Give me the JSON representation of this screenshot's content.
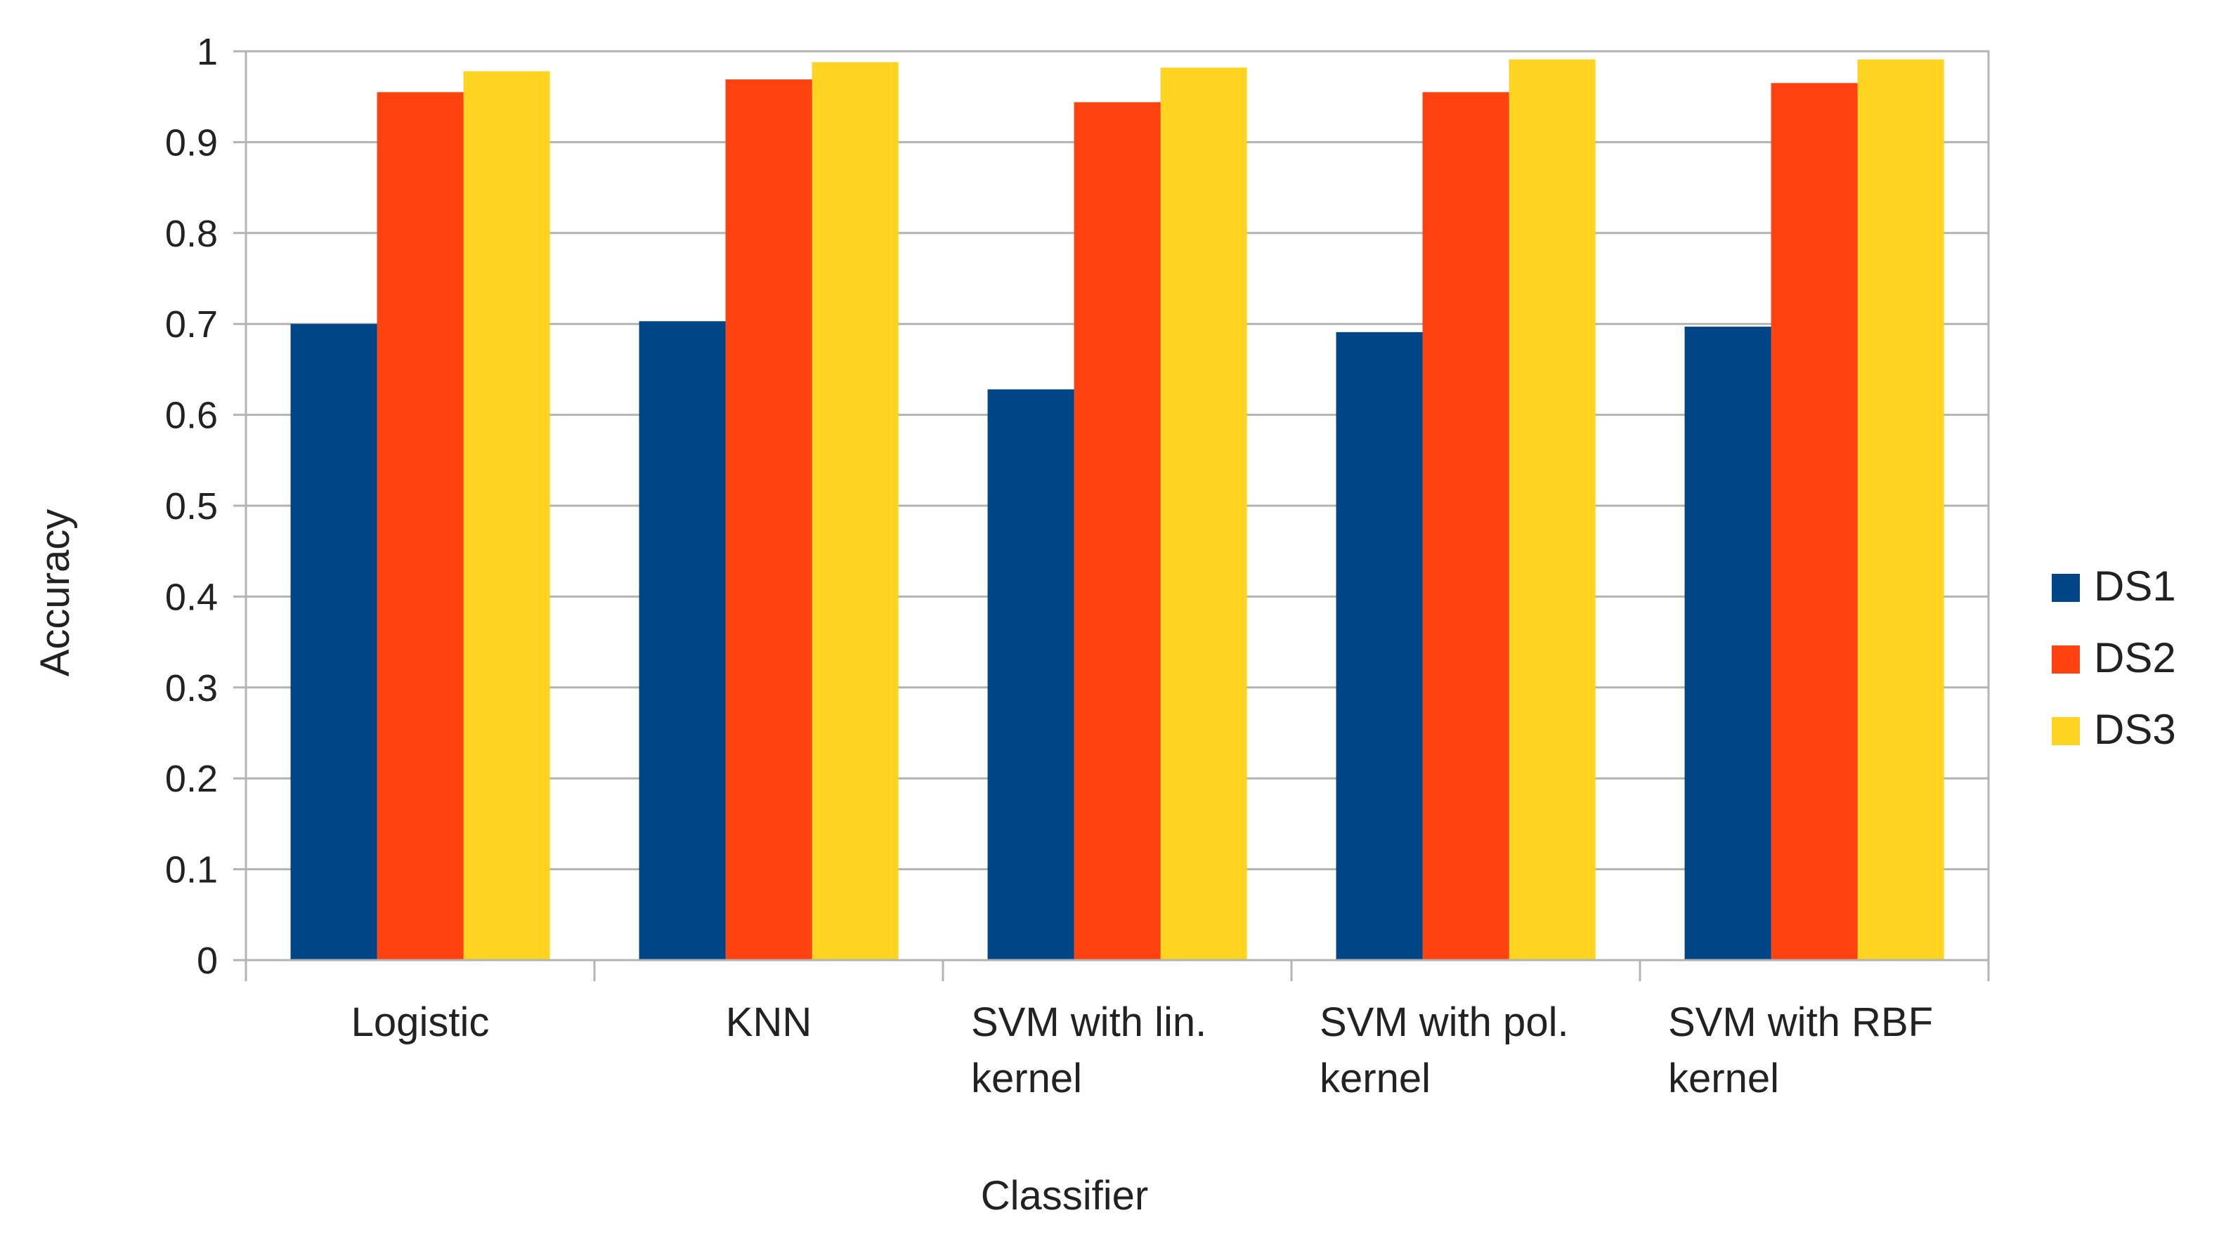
{
  "chart_data": {
    "type": "bar",
    "title": "",
    "xlabel": "Classifier",
    "ylabel": "Accuracy",
    "ylim": [
      0,
      1
    ],
    "yticks": [
      "0",
      "0.1",
      "0.2",
      "0.3",
      "0.4",
      "0.5",
      "0.6",
      "0.7",
      "0.8",
      "0.9",
      "1"
    ],
    "grid": true,
    "legend_position": "right",
    "categories": [
      [
        "Logistic"
      ],
      [
        "KNN"
      ],
      [
        "SVM with lin.",
        "kernel"
      ],
      [
        "SVM with pol.",
        "kernel"
      ],
      [
        "SVM with RBF",
        "kernel"
      ]
    ],
    "series": [
      {
        "name": "DS1",
        "color": "#004586",
        "values": [
          0.7,
          0.703,
          0.628,
          0.691,
          0.697
        ]
      },
      {
        "name": "DS2",
        "color": "#ff420e",
        "values": [
          0.955,
          0.969,
          0.944,
          0.955,
          0.965
        ]
      },
      {
        "name": "DS3",
        "color": "#ffd320",
        "values": [
          0.978,
          0.988,
          0.982,
          0.991,
          0.991
        ]
      }
    ]
  }
}
